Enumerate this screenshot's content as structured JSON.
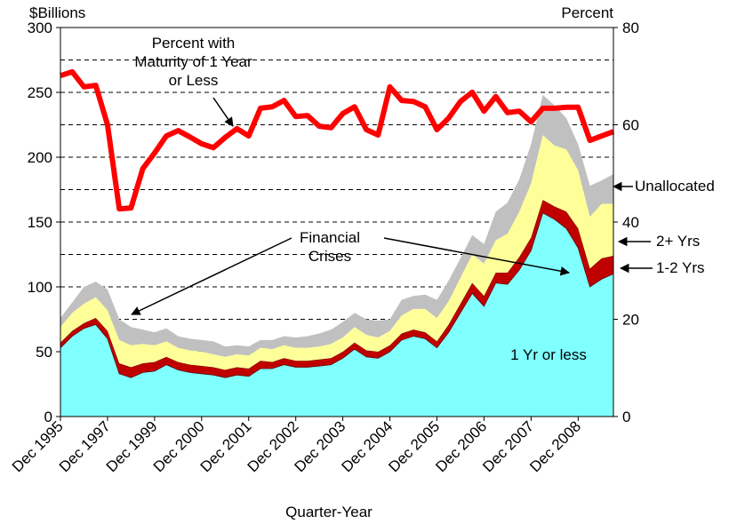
{
  "chart_data": {
    "type": "stacked_area_line",
    "y_label": "$Billions",
    "y2_label": "Percent",
    "x_label": "Quarter-Year",
    "annotation": "Financial Crises",
    "categories": [
      "Dec 1995",
      null,
      null,
      null,
      "Dec 1997",
      null,
      null,
      null,
      "Dec 1999",
      null,
      null,
      null,
      "Dec 2000",
      null,
      null,
      null,
      "Dec 2001",
      null,
      null,
      null,
      "Dec 2002",
      null,
      null,
      null,
      "Dec 2003",
      null,
      null,
      null,
      "Dec 2004",
      null,
      null,
      null,
      "Dec 2005",
      null,
      null,
      null,
      "Dec 2006",
      null,
      null,
      null,
      "Dec 2007",
      null,
      null,
      null,
      "Dec 2008",
      null,
      null,
      null
    ],
    "series": [
      {
        "name": "1 Yr or less",
        "color": "#80ffff",
        "values": [
          53,
          62,
          68,
          71,
          60,
          33,
          30,
          34,
          35,
          40,
          36,
          34,
          33,
          32,
          30,
          32,
          31,
          37,
          37,
          40,
          38,
          38,
          39,
          40,
          45,
          52,
          46,
          45,
          50,
          59,
          62,
          60,
          53,
          65,
          80,
          95,
          85,
          103,
          102,
          113,
          128,
          157,
          152,
          145,
          130,
          100,
          106,
          110
        ]
      },
      {
        "name": "1-2 Yrs",
        "color": "#c00000",
        "values": [
          4,
          4,
          4,
          5,
          6,
          8,
          8,
          7,
          7,
          6,
          6,
          6,
          6,
          6,
          6,
          6,
          6,
          6,
          5,
          5,
          5,
          5,
          5,
          5,
          5,
          5,
          5,
          5,
          5,
          5,
          5,
          5,
          5,
          6,
          7,
          8,
          8,
          8,
          9,
          10,
          10,
          10,
          10,
          13,
          15,
          14,
          16,
          14
        ]
      },
      {
        "name": "2+ Yrs",
        "color": "#ffff99",
        "values": [
          12,
          14,
          15,
          16,
          16,
          18,
          17,
          15,
          13,
          12,
          11,
          11,
          11,
          10,
          10,
          10,
          10,
          10,
          10,
          10,
          10,
          10,
          10,
          11,
          11,
          12,
          12,
          11,
          11,
          14,
          16,
          18,
          18,
          18,
          20,
          22,
          25,
          25,
          30,
          35,
          42,
          50,
          47,
          48,
          45,
          40,
          42,
          40
        ]
      },
      {
        "name": "Unallocated",
        "color": "#c0c0c0",
        "values": [
          7,
          8,
          13,
          12,
          16,
          16,
          14,
          11,
          10,
          10,
          9,
          9,
          9,
          10,
          8,
          7,
          7,
          6,
          7,
          7,
          8,
          9,
          10,
          11,
          12,
          11,
          12,
          13,
          9,
          12,
          10,
          11,
          14,
          16,
          15,
          15,
          15,
          22,
          24,
          25,
          30,
          31,
          31,
          24,
          20,
          24,
          18,
          23
        ]
      },
      {
        "name": "Percent with Maturity of 1 Year or Less",
        "color": "#ff0000",
        "axis": "y2",
        "values": [
          70.1,
          70.9,
          67.8,
          68.1,
          60,
          42.7,
          42.9,
          51,
          54.2,
          57.7,
          58.8,
          57.5,
          56.1,
          55.3,
          57.4,
          59.2,
          57.7,
          63.4,
          63.7,
          65,
          61.7,
          61.9,
          59.7,
          59.4,
          62.3,
          63.7,
          59,
          57.9,
          67.8,
          65,
          64.8,
          63.7,
          59,
          61.4,
          64.8,
          66.7,
          62.8,
          65.8,
          62.5,
          62.8,
          60.6,
          63.4,
          63.4,
          63.6,
          63.6,
          56.8,
          57.7,
          58.6
        ]
      }
    ],
    "ylim": [
      0,
      300
    ],
    "yticks": [
      0,
      50,
      100,
      150,
      200,
      250,
      300
    ],
    "ygrid": [
      25,
      50,
      75,
      100,
      125,
      150,
      175,
      200,
      225,
      250,
      275
    ],
    "y2lim": [
      0,
      80
    ],
    "y2ticks": [
      0,
      20,
      40,
      60,
      80
    ]
  }
}
